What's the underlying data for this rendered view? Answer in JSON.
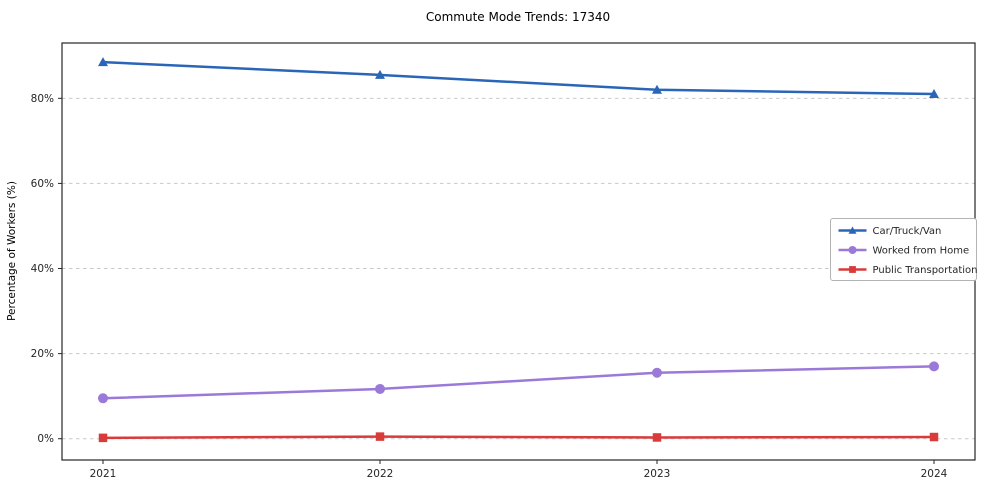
{
  "chart_data": {
    "type": "line",
    "title": "Commute Mode Trends: 17340",
    "xlabel": "",
    "ylabel": "Percentage of Workers (%)",
    "categories": [
      "2021",
      "2022",
      "2023",
      "2024"
    ],
    "series": [
      {
        "name": "Car/Truck/Van",
        "values": [
          88.5,
          85.5,
          82.0,
          81.0
        ],
        "color": "#2a65b8",
        "marker": "triangle"
      },
      {
        "name": "Worked from Home",
        "values": [
          9.5,
          11.7,
          15.5,
          17.0
        ],
        "color": "#9a79d8",
        "marker": "circle"
      },
      {
        "name": "Public Transportation",
        "values": [
          0.2,
          0.5,
          0.3,
          0.4
        ],
        "color": "#d93b3b",
        "marker": "square"
      }
    ],
    "yticks": [
      0,
      20,
      40,
      60,
      80
    ],
    "ytick_labels": [
      "0%",
      "20%",
      "40%",
      "60%",
      "80%"
    ],
    "ylim": [
      -5,
      93
    ],
    "grid": "dashed-horizontal",
    "legend_position": "middle-right",
    "axis_color": "#262626",
    "grid_color": "#c9c9c9",
    "legend_border_color": "#b3b3b3"
  }
}
